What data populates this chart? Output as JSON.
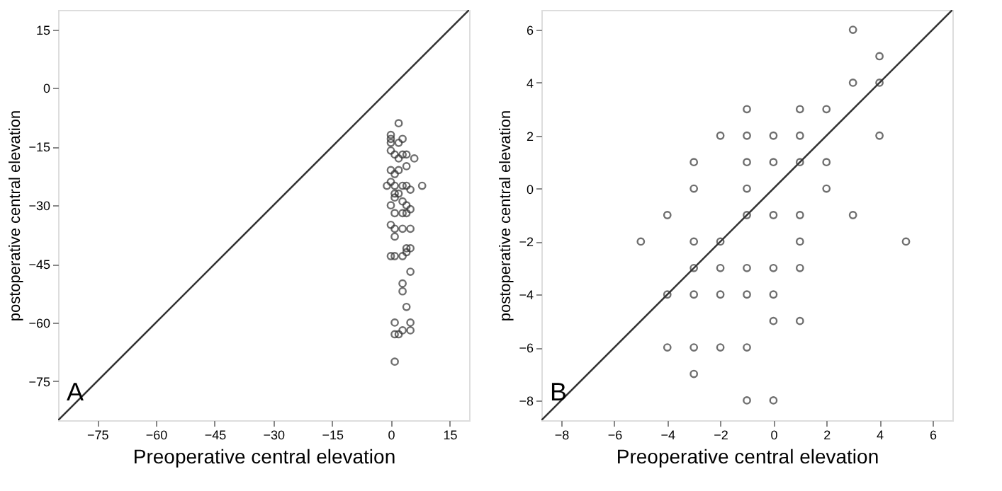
{
  "chart_data": [
    {
      "type": "scatter",
      "xlabel": "Preoperative central elevation",
      "ylabel": "postoperative central elevation",
      "annotations": [
        "A"
      ],
      "marker": "circle",
      "grid": false,
      "xlim": [
        -85,
        20
      ],
      "ylim": [
        -85,
        20
      ],
      "xticks": [
        -75,
        -60,
        -45,
        -30,
        -15,
        0,
        15
      ],
      "yticks": [
        -75,
        -60,
        -45,
        -30,
        -15,
        0,
        15
      ],
      "series": [
        {
          "color": "#333333",
          "x": [
            2,
            0,
            0,
            3,
            2,
            0,
            0,
            1,
            3,
            4,
            6,
            2,
            4,
            0,
            1,
            2,
            0,
            -1,
            1,
            3,
            4,
            8,
            5,
            1,
            1,
            2,
            0,
            3,
            4,
            5,
            1,
            3,
            4,
            0,
            1,
            1,
            3,
            5,
            4,
            5,
            4,
            0,
            1,
            3,
            5,
            3,
            3,
            4,
            1,
            5,
            3,
            5,
            1,
            2,
            1
          ],
          "values": [
            -9,
            -12,
            -13,
            -13,
            -14,
            -14,
            -16,
            -17,
            -17,
            -17,
            -18,
            -18,
            -20,
            -21,
            -22,
            -21,
            -24,
            -25,
            -25,
            -25,
            -25,
            -25,
            -26,
            -27,
            -28,
            -27,
            -30,
            -29,
            -30,
            -31,
            -32,
            -32,
            -32,
            -35,
            -36,
            -38,
            -36,
            -36,
            -41,
            -41,
            -42,
            -43,
            -43,
            -43,
            -47,
            -50,
            -52,
            -56,
            -60,
            -60,
            -62,
            -62,
            -63,
            -63,
            -70
          ]
        },
        {
          "type": "line",
          "color": "#333333",
          "marker": "none",
          "x": [
            -85,
            20
          ],
          "values": [
            -85,
            20
          ]
        }
      ]
    },
    {
      "type": "scatter",
      "xlabel": "Preoperative central elevation",
      "ylabel": "postoperative central elevation",
      "annotations": [
        "B"
      ],
      "marker": "circle",
      "grid": false,
      "xlim": [
        -8.75,
        6.75
      ],
      "ylim": [
        -8.75,
        6.75
      ],
      "xticks": [
        -8,
        -6,
        -4,
        -2,
        0,
        2,
        4,
        6
      ],
      "yticks": [
        -8,
        -6,
        -4,
        -2,
        0,
        2,
        4,
        6
      ],
      "series": [
        {
          "color": "#333333",
          "x": [
            3,
            4,
            3,
            4,
            -1,
            1,
            2,
            -2,
            -1,
            0,
            1,
            4,
            -3,
            -1,
            0,
            1,
            2,
            -3,
            -1,
            2,
            -4,
            -1,
            0,
            1,
            3,
            -5,
            -3,
            -2,
            1,
            5,
            -3,
            -2,
            -1,
            0,
            1,
            -4,
            -3,
            -2,
            -1,
            0,
            0,
            1,
            -4,
            -3,
            -2,
            -1,
            -3,
            -1,
            0
          ],
          "values": [
            6,
            5,
            4,
            4,
            3,
            3,
            3,
            2,
            2,
            2,
            2,
            2,
            1,
            1,
            1,
            1,
            1,
            0,
            0,
            0,
            -1,
            -1,
            -1,
            -1,
            -1,
            -2,
            -2,
            -2,
            -2,
            -2,
            -3,
            -3,
            -3,
            -3,
            -3,
            -4,
            -4,
            -4,
            -4,
            -4,
            -5,
            -5,
            -6,
            -6,
            -6,
            -6,
            -7,
            -8,
            -8
          ]
        },
        {
          "type": "line",
          "color": "#333333",
          "marker": "none",
          "x": [
            -8.75,
            6.75
          ],
          "values": [
            -8.75,
            6.75
          ]
        }
      ]
    }
  ]
}
